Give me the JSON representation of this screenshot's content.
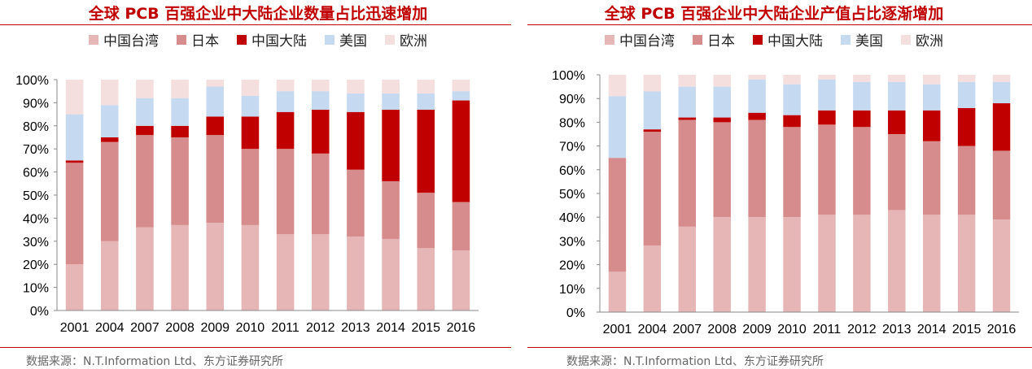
{
  "series_colors": {
    "taiwan": "#e6b6b6",
    "japan": "#d68c8c",
    "mainland": "#c00000",
    "usa": "#c5d9f1",
    "europe": "#f4dede"
  },
  "title_color": "#c00000",
  "chart_data": [
    {
      "type": "bar",
      "stacked": true,
      "title": "全球 PCB 百强企业中大陆企业数量占比迅速增加",
      "categories": [
        "2001",
        "2004",
        "2007",
        "2008",
        "2009",
        "2010",
        "2011",
        "2012",
        "2013",
        "2014",
        "2015",
        "2016"
      ],
      "series": [
        {
          "key": "taiwan",
          "name": "中国台湾",
          "values": [
            20,
            30,
            36,
            37,
            38,
            37,
            33,
            33,
            32,
            31,
            27,
            26
          ]
        },
        {
          "key": "japan",
          "name": "日本",
          "values": [
            44,
            43,
            40,
            38,
            38,
            33,
            37,
            35,
            29,
            25,
            24,
            21
          ]
        },
        {
          "key": "mainland",
          "name": "中国大陆",
          "values": [
            1,
            2,
            4,
            5,
            8,
            14,
            16,
            19,
            25,
            31,
            36,
            44
          ]
        },
        {
          "key": "usa",
          "name": "美国",
          "values": [
            20,
            14,
            12,
            12,
            13,
            9,
            9,
            8,
            8,
            7,
            7,
            4
          ]
        },
        {
          "key": "europe",
          "name": "欧洲",
          "values": [
            15,
            11,
            8,
            8,
            3,
            7,
            5,
            5,
            6,
            6,
            6,
            5
          ]
        }
      ],
      "ylim": [
        0,
        100
      ],
      "yticks": [
        "0%",
        "10%",
        "20%",
        "30%",
        "40%",
        "50%",
        "60%",
        "70%",
        "80%",
        "90%",
        "100%"
      ],
      "source": "数据来源：N.T.Information Ltd、东方证券研究所"
    },
    {
      "type": "bar",
      "stacked": true,
      "title": "全球 PCB 百强企业中大陆企业产值占比逐渐增加",
      "categories": [
        "2001",
        "2004",
        "2007",
        "2008",
        "2009",
        "2010",
        "2011",
        "2012",
        "2013",
        "2014",
        "2015",
        "2016"
      ],
      "series": [
        {
          "key": "taiwan",
          "name": "中国台湾",
          "values": [
            17,
            28,
            36,
            40,
            40,
            40,
            41,
            41,
            43,
            41,
            41,
            39
          ]
        },
        {
          "key": "japan",
          "name": "日本",
          "values": [
            48,
            48,
            45,
            40,
            41,
            38,
            38,
            37,
            32,
            31,
            29,
            29
          ]
        },
        {
          "key": "mainland",
          "name": "中国大陆",
          "values": [
            0,
            1,
            1,
            2,
            3,
            5,
            6,
            7,
            10,
            13,
            16,
            20
          ]
        },
        {
          "key": "usa",
          "name": "美国",
          "values": [
            26,
            16,
            13,
            13,
            14,
            13,
            13,
            12,
            12,
            11,
            11,
            9
          ]
        },
        {
          "key": "europe",
          "name": "欧洲",
          "values": [
            9,
            7,
            5,
            5,
            2,
            4,
            2,
            3,
            3,
            4,
            3,
            3
          ]
        }
      ],
      "ylim": [
        0,
        100
      ],
      "yticks": [
        "0%",
        "10%",
        "20%",
        "30%",
        "40%",
        "50%",
        "60%",
        "70%",
        "80%",
        "90%",
        "100%"
      ],
      "source": "数据来源：N.T.Information Ltd、东方证券研究所"
    }
  ]
}
